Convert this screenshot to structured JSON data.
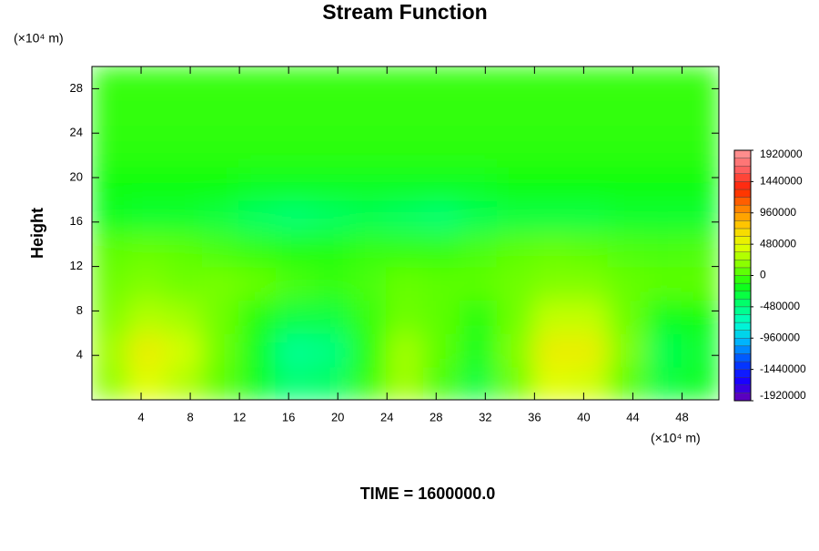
{
  "chart_data": {
    "type": "contour",
    "title": "Stream Function",
    "ylabel": "Height",
    "x_unit": "(×10⁴ m)",
    "y_unit": "(×10⁴ m)",
    "footer": "TIME = 1600000.0",
    "xlim": [
      0,
      51
    ],
    "ylim": [
      0,
      30
    ],
    "xticks": [
      4,
      8,
      12,
      16,
      20,
      24,
      28,
      32,
      36,
      40,
      44,
      48
    ],
    "yticks": [
      4,
      8,
      12,
      16,
      20,
      24,
      28
    ],
    "x": [
      1.5,
      4.5,
      7.5,
      10.5,
      13.5,
      16.5,
      19.5,
      22.5,
      25.5,
      28.5,
      31.5,
      34.5,
      37.5,
      40.5,
      43.5,
      46.5,
      49.5
    ],
    "y": [
      1.5,
      4.5,
      7.5,
      10.5,
      13.5,
      16.5,
      19.5,
      22.5,
      25.5,
      28.5
    ],
    "z": [
      [
        200000,
        450000,
        300000,
        50000,
        -200000,
        -450000,
        -400000,
        -50000,
        250000,
        0,
        -300000,
        100000,
        450000,
        400000,
        50000,
        -300000,
        -200000
      ],
      [
        250000,
        550000,
        400000,
        100000,
        -200000,
        -550000,
        -500000,
        -100000,
        250000,
        50000,
        -200000,
        150000,
        550000,
        550000,
        150000,
        -350000,
        -250000
      ],
      [
        150000,
        300000,
        250000,
        100000,
        -100000,
        -300000,
        -300000,
        -50000,
        100000,
        50000,
        -100000,
        100000,
        350000,
        350000,
        100000,
        -200000,
        -150000
      ],
      [
        100000,
        150000,
        100000,
        120000,
        80000,
        0,
        -50000,
        0,
        80000,
        50000,
        50000,
        100000,
        150000,
        150000,
        80000,
        50000,
        50000
      ],
      [
        50000,
        80000,
        50000,
        0,
        -50000,
        -100000,
        -100000,
        -50000,
        -50000,
        -50000,
        0,
        50000,
        80000,
        50000,
        20000,
        0,
        20000
      ],
      [
        -200000,
        -250000,
        -250000,
        -300000,
        -400000,
        -450000,
        -400000,
        -350000,
        -400000,
        -450000,
        -350000,
        -300000,
        -300000,
        -300000,
        -250000,
        -250000,
        -250000
      ],
      [
        -150000,
        -150000,
        -150000,
        -150000,
        -200000,
        -200000,
        -200000,
        -200000,
        -200000,
        -200000,
        -200000,
        -150000,
        -150000,
        -150000,
        -150000,
        -150000,
        -150000
      ],
      [
        -80000,
        -80000,
        -80000,
        -80000,
        -80000,
        -80000,
        -80000,
        -80000,
        -80000,
        -80000,
        -80000,
        -80000,
        -80000,
        -80000,
        -80000,
        -80000,
        -80000
      ],
      [
        -60000,
        -60000,
        -60000,
        -60000,
        -60000,
        -60000,
        -60000,
        -60000,
        -60000,
        -60000,
        -60000,
        -60000,
        -60000,
        -60000,
        -60000,
        -60000,
        -60000
      ],
      [
        -50000,
        -50000,
        -50000,
        -50000,
        -50000,
        -50000,
        -50000,
        -50000,
        -50000,
        -50000,
        -50000,
        -50000,
        -50000,
        -50000,
        -50000,
        -50000,
        -50000
      ]
    ],
    "clim": [
      -1920000,
      1920000
    ],
    "colorbar_ticks": [
      1920000,
      1440000,
      960000,
      480000,
      0,
      -480000,
      -960000,
      -1440000,
      -1920000
    ]
  }
}
